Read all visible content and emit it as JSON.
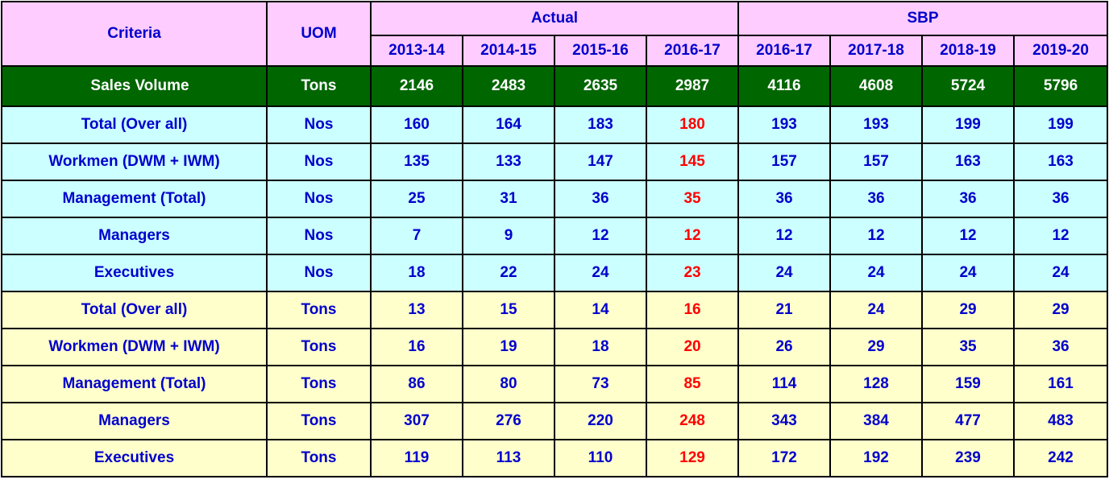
{
  "header": {
    "criteria": "Criteria",
    "uom": "UOM",
    "actual": "Actual",
    "sbp": "SBP",
    "years": [
      "2013-14",
      "2014-15",
      "2015-16",
      "2016-17",
      "2016-17",
      "2017-18",
      "2018-19",
      "2019-20"
    ]
  },
  "sales": {
    "criteria": "Sales Volume",
    "uom": "Tons",
    "values": [
      "2146",
      "2483",
      "2635",
      "2987",
      "4116",
      "4608",
      "5724",
      "5796"
    ]
  },
  "rows": [
    {
      "criteria": "Total (Over all)",
      "uom": "Nos",
      "values": [
        "160",
        "164",
        "183",
        "180",
        "193",
        "193",
        "199",
        "199"
      ]
    },
    {
      "criteria": "Workmen (DWM + IWM)",
      "uom": "Nos",
      "values": [
        "135",
        "133",
        "147",
        "145",
        "157",
        "157",
        "163",
        "163"
      ]
    },
    {
      "criteria": "Management (Total)",
      "uom": "Nos",
      "values": [
        "25",
        "31",
        "36",
        "35",
        "36",
        "36",
        "36",
        "36"
      ]
    },
    {
      "criteria": "Managers",
      "uom": "Nos",
      "values": [
        "7",
        "9",
        "12",
        "12",
        "12",
        "12",
        "12",
        "12"
      ]
    },
    {
      "criteria": "Executives",
      "uom": "Nos",
      "values": [
        "18",
        "22",
        "24",
        "23",
        "24",
        "24",
        "24",
        "24"
      ]
    },
    {
      "criteria": "Total (Over all)",
      "uom": "Tons",
      "values": [
        "13",
        "15",
        "14",
        "16",
        "21",
        "24",
        "29",
        "29"
      ]
    },
    {
      "criteria": "Workmen (DWM + IWM)",
      "uom": "Tons",
      "values": [
        "16",
        "19",
        "18",
        "20",
        "26",
        "29",
        "35",
        "36"
      ]
    },
    {
      "criteria": "Management (Total)",
      "uom": "Tons",
      "values": [
        "86",
        "80",
        "73",
        "85",
        "114",
        "128",
        "159",
        "161"
      ]
    },
    {
      "criteria": "Managers",
      "uom": "Tons",
      "values": [
        "307",
        "276",
        "220",
        "248",
        "343",
        "384",
        "477",
        "483"
      ]
    },
    {
      "criteria": "Executives",
      "uom": "Tons",
      "values": [
        "119",
        "113",
        "110",
        "129",
        "172",
        "192",
        "239",
        "242"
      ]
    }
  ],
  "colors": {
    "header_bg": "#ffccff",
    "header_text": "#0000cc",
    "sales_bg": "#006600",
    "sales_text": "#ffffff",
    "nos_rows_bg": "#ccffff",
    "tons_rows_bg": "#ffffcc",
    "body_text": "#0000cc",
    "highlight_text": "#ff0000",
    "border": "#000000"
  }
}
